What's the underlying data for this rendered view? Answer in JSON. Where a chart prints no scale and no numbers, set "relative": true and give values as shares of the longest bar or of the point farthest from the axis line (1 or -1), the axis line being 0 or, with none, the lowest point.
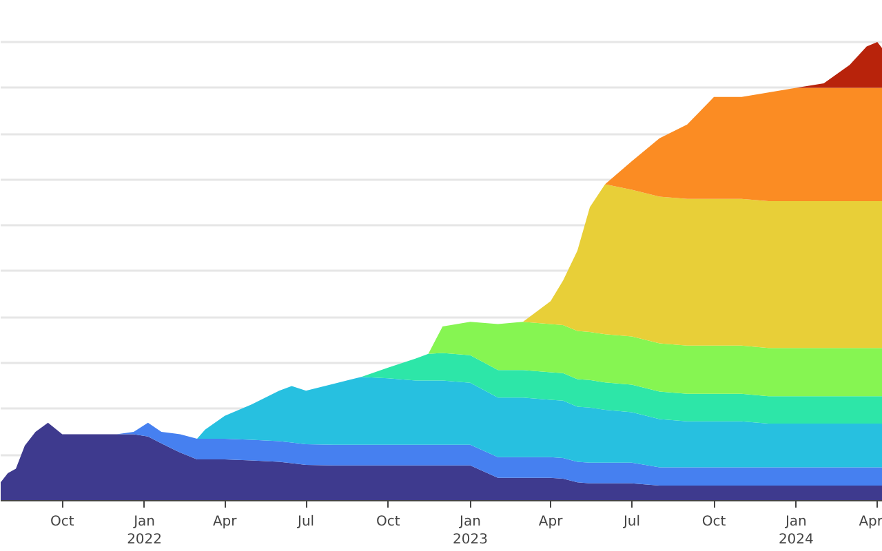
{
  "chart_data": {
    "type": "area",
    "stacked": true,
    "relative": true,
    "grid": "y",
    "x": [
      "2021-07-24",
      "2021-08-01",
      "2021-08-10",
      "2021-08-20",
      "2021-09-01",
      "2021-09-15",
      "2021-10-01",
      "2021-11-01",
      "2021-12-01",
      "2021-12-20",
      "2022-01-05",
      "2022-01-20",
      "2022-02-10",
      "2022-03-01",
      "2022-03-10",
      "2022-04-01",
      "2022-05-01",
      "2022-06-01",
      "2022-06-15",
      "2022-07-01",
      "2022-08-01",
      "2022-09-01",
      "2022-10-01",
      "2022-11-01",
      "2022-11-15",
      "2022-12-01",
      "2023-01-01",
      "2023-02-01",
      "2023-03-01",
      "2023-04-01",
      "2023-04-15",
      "2023-05-01",
      "2023-05-15",
      "2023-06-01",
      "2023-07-01",
      "2023-08-01",
      "2023-09-01",
      "2023-10-01",
      "2023-10-15",
      "2023-11-01",
      "2023-12-01",
      "2024-01-01",
      "2024-02-01",
      "2024-03-01",
      "2024-03-20",
      "2024-04-01",
      "2024-04-07"
    ],
    "xlim": [
      "2021-07-24",
      "2024-04-07"
    ],
    "xticks": [
      {
        "value": "2021-10-01",
        "label": "Oct"
      },
      {
        "value": "2022-01-01",
        "label": "Jan\n2022"
      },
      {
        "value": "2022-04-01",
        "label": "Apr"
      },
      {
        "value": "2022-07-01",
        "label": "Jul"
      },
      {
        "value": "2022-10-01",
        "label": "Oct"
      },
      {
        "value": "2023-01-01",
        "label": "Jan\n2023"
      },
      {
        "value": "2023-04-01",
        "label": "Apr"
      },
      {
        "value": "2023-07-01",
        "label": "Jul"
      },
      {
        "value": "2023-10-01",
        "label": "Oct"
      },
      {
        "value": "2024-01-01",
        "label": "Jan\n2024"
      },
      {
        "value": "2024-04-01",
        "label": "Apr"
      }
    ],
    "series": [
      {
        "color": "#3e3a8e",
        "values": [
          0.04,
          0.06,
          0.07,
          0.12,
          0.15,
          0.17,
          0.145,
          0.145,
          0.145,
          0.145,
          0.14,
          0.125,
          0.105,
          0.09,
          0.09,
          0.09,
          0.088,
          0.085,
          0.082,
          0.078,
          0.077,
          0.077,
          0.077,
          0.077,
          0.077,
          0.077,
          0.077,
          0.05,
          0.05,
          0.05,
          0.048,
          0.04,
          0.038,
          0.038,
          0.038,
          0.033,
          0.033,
          0.033,
          0.033,
          0.033,
          0.033,
          0.033,
          0.033,
          0.033,
          0.033,
          0.033,
          0.033
        ]
      },
      {
        "color": "#4680f0",
        "values": [
          0,
          0,
          0,
          0,
          0,
          0,
          0,
          0,
          0,
          0.005,
          0.03,
          0.025,
          0.04,
          0.045,
          0.045,
          0.045,
          0.045,
          0.045,
          0.045,
          0.045,
          0.045,
          0.045,
          0.045,
          0.045,
          0.045,
          0.045,
          0.045,
          0.045,
          0.045,
          0.045,
          0.045,
          0.045,
          0.045,
          0.045,
          0.045,
          0.04,
          0.04,
          0.04,
          0.04,
          0.04,
          0.04,
          0.04,
          0.04,
          0.04,
          0.04,
          0.04,
          0.04
        ]
      },
      {
        "color": "#27c0e0",
        "values": [
          0,
          0,
          0,
          0,
          0,
          0,
          0,
          0,
          0,
          0,
          0,
          0,
          0,
          0,
          0.02,
          0.05,
          0.077,
          0.11,
          0.123,
          0.117,
          0.133,
          0.148,
          0.145,
          0.14,
          0.14,
          0.14,
          0.135,
          0.13,
          0.13,
          0.125,
          0.125,
          0.12,
          0.12,
          0.115,
          0.11,
          0.105,
          0.1,
          0.1,
          0.1,
          0.1,
          0.095,
          0.095,
          0.095,
          0.095,
          0.095,
          0.095,
          0.095
        ]
      },
      {
        "color": "#2de6a8",
        "values": [
          0,
          0,
          0,
          0,
          0,
          0,
          0,
          0,
          0,
          0,
          0,
          0,
          0,
          0,
          0,
          0,
          0,
          0,
          0,
          0,
          0,
          0,
          0.023,
          0.048,
          0.058,
          0.06,
          0.06,
          0.06,
          0.06,
          0.06,
          0.06,
          0.06,
          0.06,
          0.06,
          0.06,
          0.06,
          0.06,
          0.06,
          0.06,
          0.06,
          0.06,
          0.06,
          0.06,
          0.06,
          0.06,
          0.06,
          0.06
        ]
      },
      {
        "color": "#86f552",
        "values": [
          0,
          0,
          0,
          0,
          0,
          0,
          0,
          0,
          0,
          0,
          0,
          0,
          0,
          0,
          0,
          0,
          0,
          0,
          0,
          0,
          0,
          0,
          0,
          0,
          0,
          0.058,
          0.073,
          0.1,
          0.105,
          0.105,
          0.105,
          0.105,
          0.105,
          0.105,
          0.105,
          0.105,
          0.105,
          0.105,
          0.105,
          0.105,
          0.105,
          0.105,
          0.105,
          0.105,
          0.105,
          0.105,
          0.105
        ]
      },
      {
        "color": "#e8cf38",
        "values": [
          0,
          0,
          0,
          0,
          0,
          0,
          0,
          0,
          0,
          0,
          0,
          0,
          0,
          0,
          0,
          0,
          0,
          0,
          0,
          0,
          0,
          0,
          0,
          0,
          0,
          0,
          0,
          0,
          0,
          0.05,
          0.097,
          0.175,
          0.272,
          0.327,
          0.32,
          0.32,
          0.32,
          0.32,
          0.32,
          0.32,
          0.32,
          0.32,
          0.32,
          0.32,
          0.32,
          0.32,
          0.32
        ]
      },
      {
        "color": "#fb8c23",
        "values": [
          0,
          0,
          0,
          0,
          0,
          0,
          0,
          0,
          0,
          0,
          0,
          0,
          0,
          0,
          0,
          0,
          0,
          0,
          0,
          0,
          0,
          0,
          0,
          0,
          0,
          0,
          0,
          0,
          0,
          0,
          0,
          0,
          0,
          0,
          0.062,
          0.127,
          0.162,
          0.222,
          0.222,
          0.222,
          0.237,
          0.247,
          0.247,
          0.247,
          0.247,
          0.247,
          0.247
        ]
      },
      {
        "color": "#b8230b",
        "values": [
          0,
          0,
          0,
          0,
          0,
          0,
          0,
          0,
          0,
          0,
          0,
          0,
          0,
          0,
          0,
          0,
          0,
          0,
          0,
          0,
          0,
          0,
          0,
          0,
          0,
          0,
          0,
          0,
          0,
          0,
          0,
          0,
          0,
          0,
          0,
          0,
          0,
          0,
          0,
          0,
          0,
          0,
          0.01,
          0.05,
          0.09,
          0.1,
          0.085
        ]
      }
    ]
  }
}
